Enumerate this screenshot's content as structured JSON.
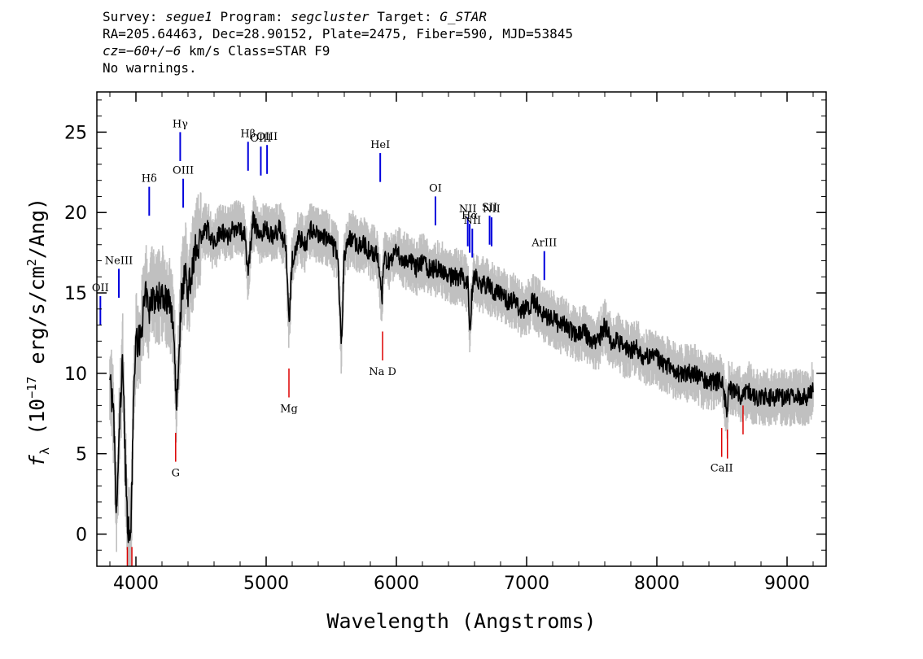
{
  "header": {
    "line1": {
      "survey_key": "Survey:",
      "survey": "segue1",
      "program_key": "Program:",
      "program": "segcluster",
      "target_key": "Target:",
      "target": "G_STAR"
    },
    "line2": "RA=205.64463, Dec=28.90152, Plate=2475, Fiber=590, MJD=53845",
    "line3": {
      "cz_key": "cz",
      "cz_value": "=−60+/−6",
      "cz_unit": " km/s Class=STAR F9"
    },
    "line4": "No warnings."
  },
  "chart_data": {
    "type": "line",
    "xlabel": "Wavelength (Angstroms)",
    "ylabel": "fλ (10⁻¹⁷ erg/s/cm²/Ang)",
    "ylabel_parts": {
      "f": "f",
      "sub": "λ",
      "pre": " (10",
      "exp1": "−17",
      "mid": " erg/s/cm",
      "exp2": "2",
      "post": "/Ang)"
    },
    "xlim": [
      3700,
      9300
    ],
    "ylim": [
      -2,
      27.5
    ],
    "x_ticks": [
      4000,
      5000,
      6000,
      7000,
      8000,
      9000
    ],
    "y_ticks": [
      0,
      5,
      10,
      15,
      20,
      25
    ],
    "grid": false,
    "series": [
      {
        "role": "flux",
        "color": "#000000",
        "x": [
          3800,
          3830,
          3850,
          3880,
          3900,
          3920,
          3935,
          3950,
          3965,
          3980,
          4000,
          4030,
          4060,
          4080,
          4100,
          4120,
          4150,
          4200,
          4250,
          4290,
          4310,
          4330,
          4350,
          4380,
          4400,
          4450,
          4500,
          4550,
          4600,
          4650,
          4700,
          4750,
          4800,
          4840,
          4862,
          4880,
          4900,
          4950,
          5000,
          5050,
          5100,
          5150,
          5175,
          5200,
          5250,
          5300,
          5350,
          5400,
          5450,
          5500,
          5550,
          5577,
          5600,
          5650,
          5700,
          5750,
          5800,
          5850,
          5890,
          5900,
          5950,
          6000,
          6050,
          6100,
          6150,
          6200,
          6250,
          6300,
          6350,
          6400,
          6450,
          6500,
          6550,
          6563,
          6580,
          6600,
          6650,
          6700,
          6750,
          6800,
          6850,
          6900,
          6950,
          7000,
          7050,
          7100,
          7150,
          7200,
          7250,
          7300,
          7350,
          7400,
          7450,
          7500,
          7550,
          7600,
          7650,
          7700,
          7750,
          7800,
          7850,
          7900,
          7950,
          8000,
          8050,
          8100,
          8150,
          8200,
          8250,
          8300,
          8350,
          8400,
          8450,
          8500,
          8542,
          8550,
          8600,
          8650,
          8700,
          8750,
          8800,
          8850,
          8900,
          8950,
          9000,
          9050,
          9100,
          9150,
          9200
        ],
        "y": [
          10,
          7,
          1,
          8,
          11,
          4,
          1,
          -0.5,
          1,
          8,
          12,
          12,
          14,
          15,
          13.5,
          15,
          14.5,
          15,
          14.5,
          13,
          8,
          11,
          15,
          16.5,
          15,
          17.5,
          18.5,
          19,
          18,
          19,
          18.5,
          19,
          19,
          18.5,
          16,
          18,
          19.5,
          18.5,
          19,
          18.5,
          19,
          18,
          13,
          17,
          18.5,
          18,
          19,
          18.5,
          18.5,
          18,
          17.5,
          11.5,
          17.5,
          18.5,
          18,
          18,
          17.5,
          17.5,
          14.5,
          17,
          17,
          17.5,
          17,
          17,
          16.5,
          17,
          16.5,
          16.5,
          16.5,
          16,
          16,
          16,
          15.5,
          12.5,
          15,
          16,
          15.5,
          15.5,
          15,
          15,
          14.5,
          14.5,
          14,
          14,
          14.5,
          14,
          13.5,
          13.5,
          13,
          13,
          12.5,
          12.5,
          12.5,
          12,
          12,
          13,
          12,
          12,
          11.5,
          11.5,
          11.5,
          11,
          11,
          11,
          10.5,
          10.5,
          10,
          10,
          10,
          10,
          9.5,
          9.5,
          9.5,
          9.5,
          7.5,
          9,
          9,
          8.5,
          9,
          8.5,
          8.5,
          8.5,
          8.5,
          8.5,
          8.5,
          8.5,
          8.5,
          8.5,
          9
        ]
      }
    ],
    "emission_lines": [
      {
        "label": "OII",
        "x": 3727,
        "y_bottom": 13,
        "y_top": 14.8
      },
      {
        "label": "NeIII",
        "x": 3869,
        "y_bottom": 14.7,
        "y_top": 16.5
      },
      {
        "label": "Hδ",
        "x": 4102,
        "y_bottom": 19.8,
        "y_top": 21.6
      },
      {
        "label": "Hγ",
        "x": 4340,
        "y_bottom": 23.2,
        "y_top": 25
      },
      {
        "label": "OIII",
        "x": 4363,
        "y_bottom": 20.3,
        "y_top": 22.1
      },
      {
        "label": "Hβ",
        "x": 4861,
        "y_bottom": 22.6,
        "y_top": 24.4
      },
      {
        "label": "OIII",
        "x": 4959,
        "y_bottom": 22.3,
        "y_top": 24.1
      },
      {
        "label": "OIII",
        "x": 5007,
        "y_bottom": 22.4,
        "y_top": 24.2
      },
      {
        "label": "HeI",
        "x": 5876,
        "y_bottom": 21.9,
        "y_top": 23.7
      },
      {
        "label": "OI",
        "x": 6300,
        "y_bottom": 19.2,
        "y_top": 21
      },
      {
        "label": "NII",
        "x": 6548,
        "y_bottom": 17.9,
        "y_top": 19.7
      },
      {
        "label": "Hα",
        "x": 6563,
        "y_bottom": 17.5,
        "y_top": 19.3
      },
      {
        "label": "NII",
        "x": 6583,
        "y_bottom": 17.2,
        "y_top": 19
      },
      {
        "label": "SII",
        "x": 6716,
        "y_bottom": 18,
        "y_top": 19.8
      },
      {
        "label": "NII",
        "x": 6731,
        "y_bottom": 17.9,
        "y_top": 19.7
      },
      {
        "label": "ArIII",
        "x": 7136,
        "y_bottom": 15.8,
        "y_top": 17.6
      }
    ],
    "absorption_lines": [
      {
        "label": "",
        "x": 3934,
        "y_bottom": -2,
        "y_top": -0.8
      },
      {
        "label": "",
        "x": 3969,
        "y_bottom": -2,
        "y_top": -0.8
      },
      {
        "label": "G",
        "x": 4305,
        "y_bottom": 4.5,
        "y_top": 6.3
      },
      {
        "label": "Mg",
        "x": 5175,
        "y_bottom": 8.5,
        "y_top": 10.3
      },
      {
        "label": "Na D",
        "x": 5894,
        "y_bottom": 10.8,
        "y_top": 12.6
      },
      {
        "label": "CaII",
        "x": 8498,
        "y_bottom": 4.8,
        "y_top": 6.6
      },
      {
        "label": "CaII",
        "x": 8542,
        "y_bottom": 4.7,
        "y_top": 6.5
      },
      {
        "label": "CaII",
        "x": 8662,
        "y_bottom": 6.2,
        "y_top": 8
      }
    ],
    "colors": {
      "flux": "#000000",
      "error_band": "#c0c0c0",
      "emission": "#0000dd",
      "absorption": "#dd0000"
    }
  }
}
